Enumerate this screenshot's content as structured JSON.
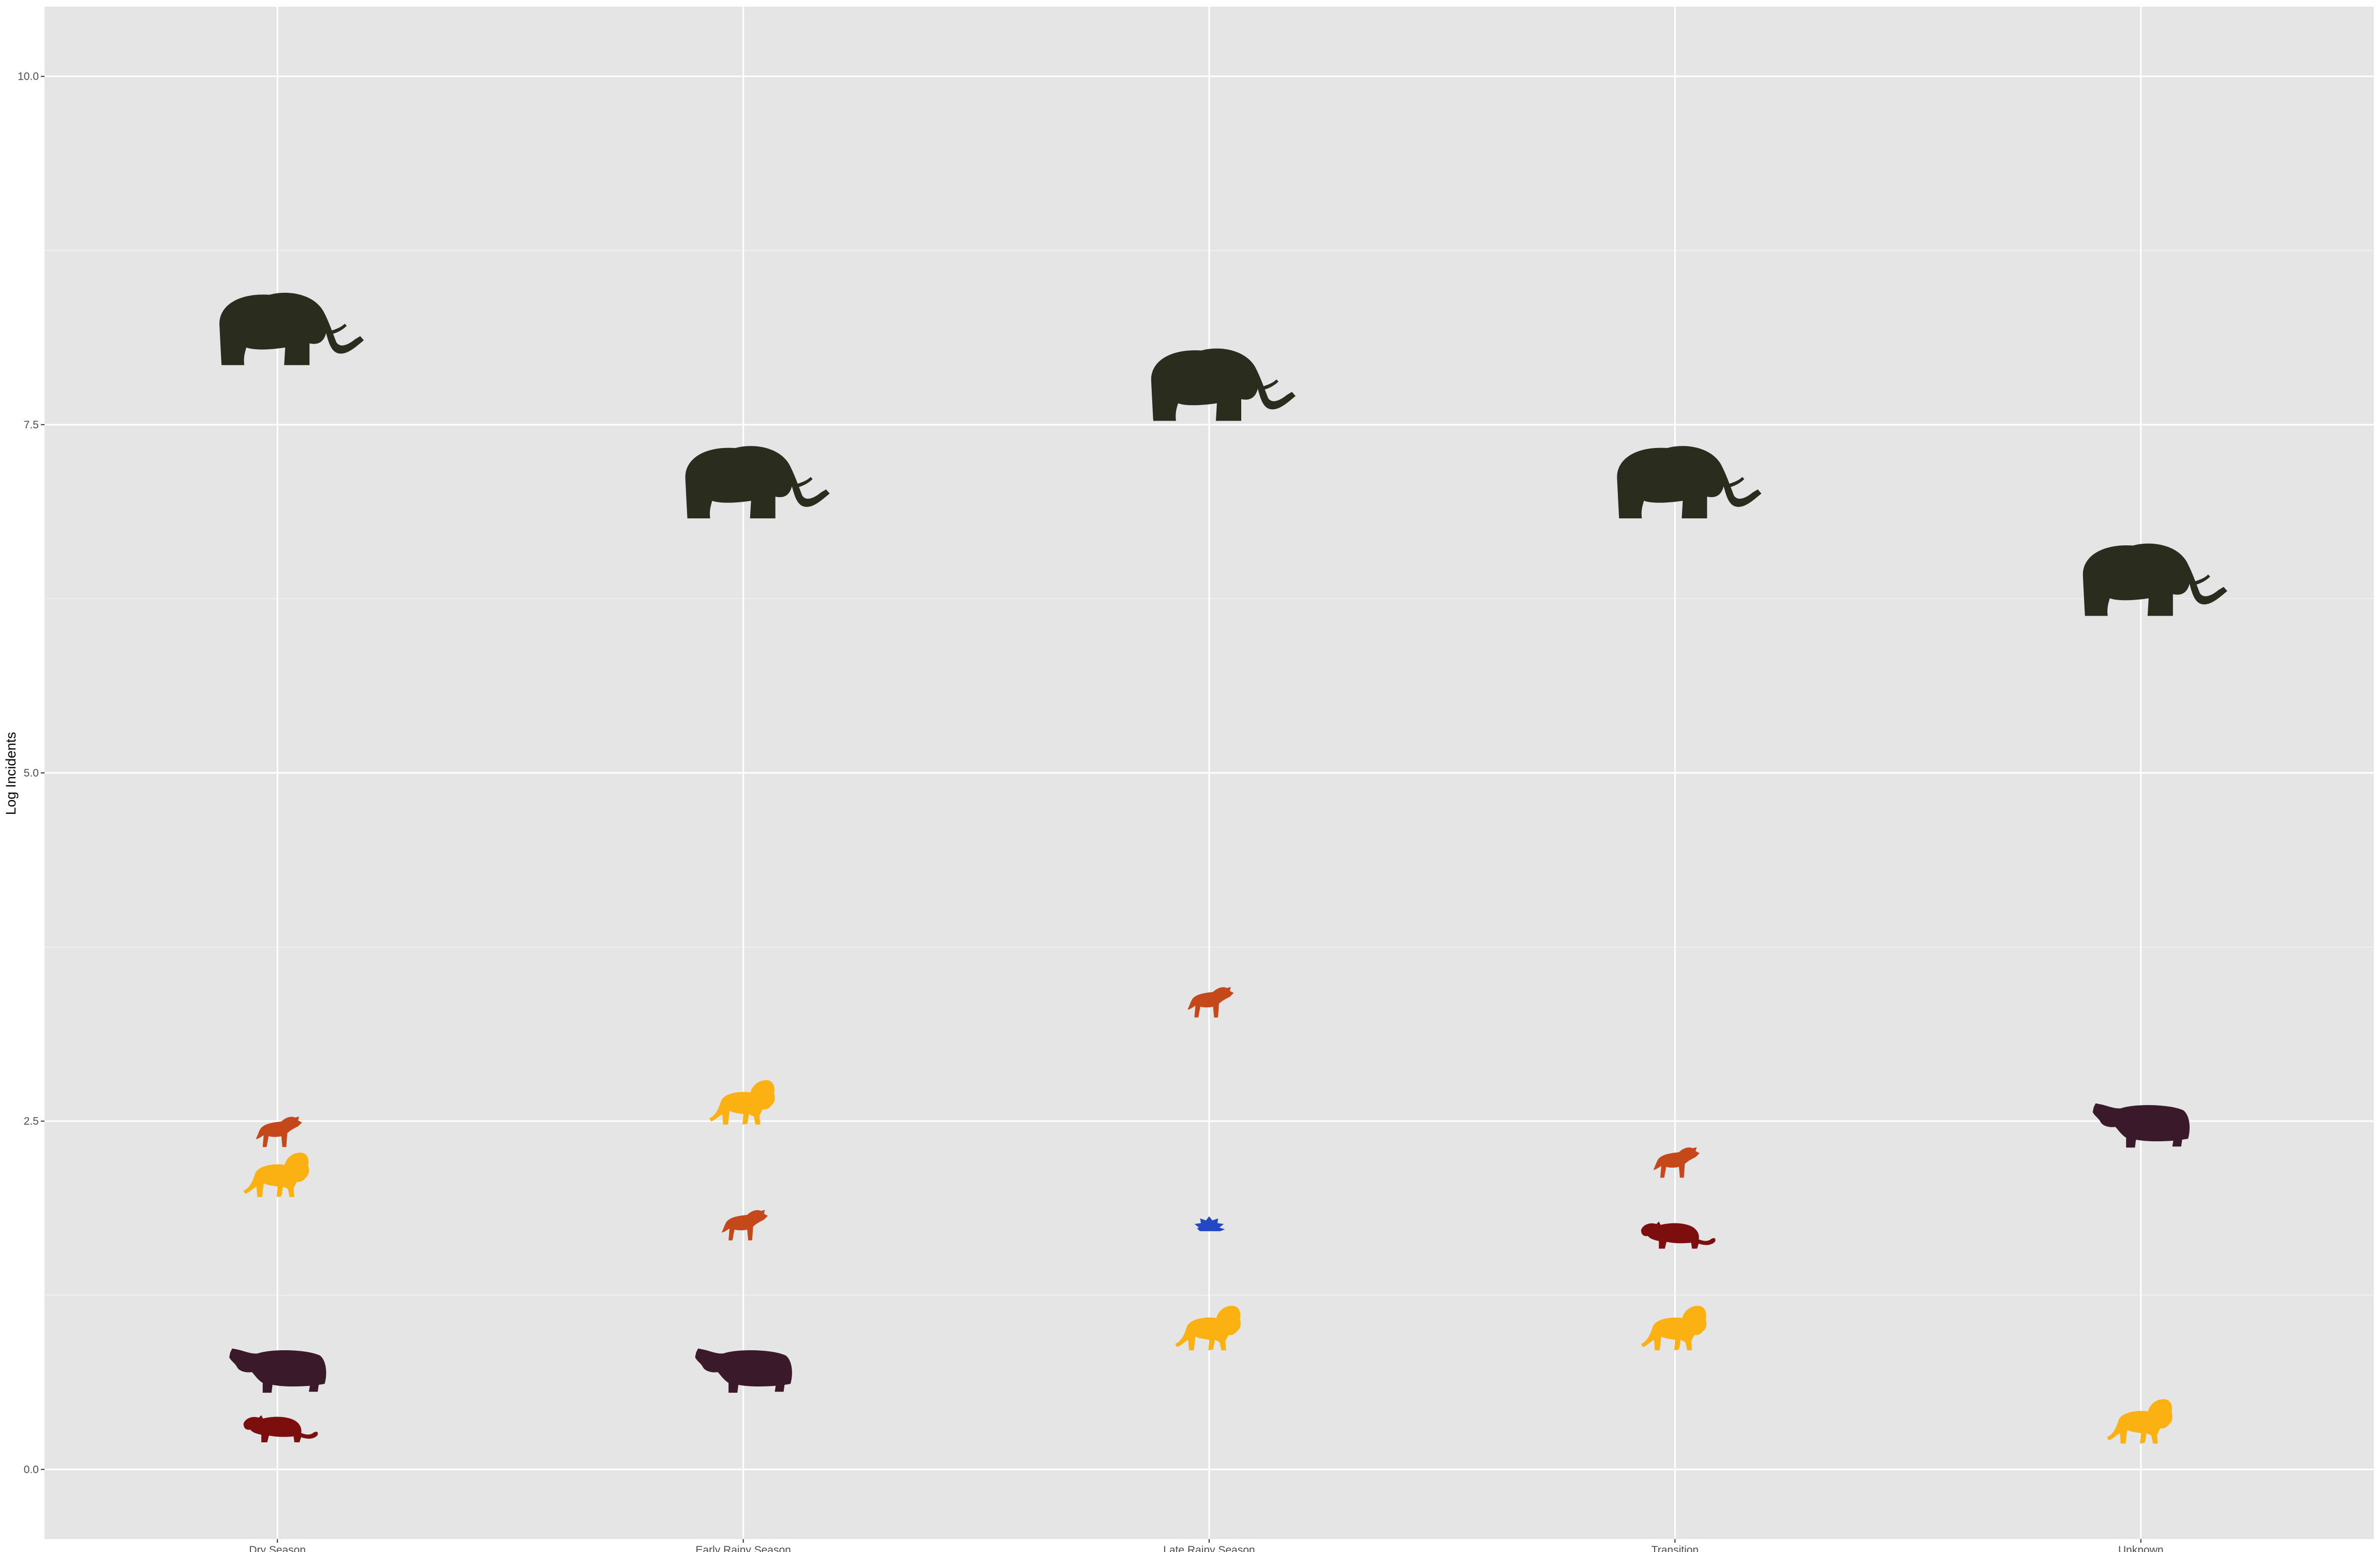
{
  "chart_data": {
    "type": "scatter",
    "title": "",
    "xlabel": "",
    "ylabel": "Log Incidents",
    "categories": [
      "Dry Season",
      "Early Rainy Season",
      "Late Rainy Season",
      "Transition",
      "Unknown"
    ],
    "ylim": [
      -0.5,
      10.5
    ],
    "y_ticks": [
      0.0,
      2.5,
      5.0,
      7.5,
      10.0
    ],
    "y_tick_labels": [
      "0.0",
      "2.5",
      "5.0",
      "7.5",
      "10.0"
    ],
    "grid": true,
    "legend": "none",
    "marker": "animal silhouette icon per species",
    "series": [
      {
        "icon": "elephant-icon",
        "color": "#2a2d1d",
        "values": [
          8.15,
          7.05,
          7.75,
          7.05,
          6.35
        ]
      },
      {
        "icon": "hyena-icon",
        "color": "#c4481a",
        "values": [
          2.42,
          1.75,
          3.35,
          2.2,
          null
        ]
      },
      {
        "icon": "lion-icon",
        "color": "#fcb112",
        "values": [
          2.1,
          2.62,
          1.0,
          1.0,
          0.33
        ]
      },
      {
        "icon": "hippo-icon",
        "color": "#3a1a2a",
        "values": [
          0.72,
          0.72,
          null,
          null,
          2.48
        ]
      },
      {
        "icon": "leopard-icon",
        "color": "#7d0e0e",
        "values": [
          0.28,
          null,
          null,
          1.67,
          null
        ]
      },
      {
        "icon": "porcupine-icon",
        "color": "#2447c4",
        "values": [
          null,
          null,
          1.75,
          null,
          null
        ]
      }
    ]
  }
}
